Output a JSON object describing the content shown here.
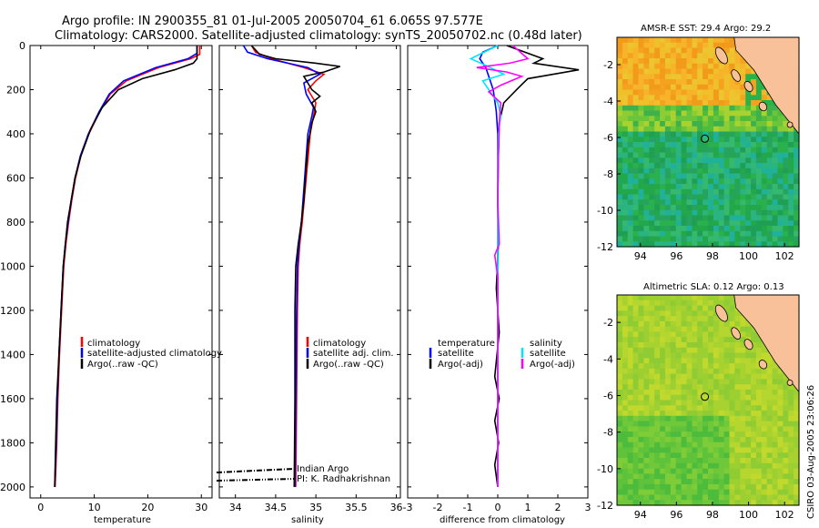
{
  "title": {
    "line1": "Argo profile: IN 2900355_81 01-Jul-2005 20050704_61 6.065S 97.577E",
    "line2": "Climatology: CARS2000. Satellite-adjusted climatology: synTS_20050702.nc (0.48d later)"
  },
  "side_label": "CSIRO 03-Aug-2005 23:06:26",
  "colors": {
    "climatology": "#ff0000",
    "satellite": "#0000ff",
    "argo": "#000000",
    "cyan": "#00e5ff",
    "magenta": "#ff00ff"
  },
  "chart_data": [
    {
      "type": "line",
      "id": "temperature",
      "xlabel": "temperature",
      "ylabel": "",
      "xlim": [
        -2,
        32
      ],
      "ylim": [
        2050,
        0
      ],
      "xticks": [
        "0",
        "10",
        "20",
        "30"
      ],
      "xtick_values": [
        0,
        10,
        20,
        30
      ],
      "yticks": [
        "0",
        "200",
        "400",
        "600",
        "800",
        "1000",
        "1200",
        "1400",
        "1600",
        "1800",
        "2000"
      ],
      "ytick_values": [
        0,
        200,
        400,
        600,
        800,
        1000,
        1200,
        1400,
        1600,
        1800,
        2000
      ],
      "legend": [
        "climatology",
        "satellite-adjusted climatology",
        "Argo(..raw -QC)"
      ],
      "series": [
        {
          "name": "climatology",
          "color": "#ff0000",
          "points": [
            [
              29.7,
              0
            ],
            [
              29.7,
              40
            ],
            [
              28,
              60
            ],
            [
              22,
              100
            ],
            [
              16,
              160
            ],
            [
              13,
              220
            ],
            [
              11,
              300
            ],
            [
              9,
              400
            ],
            [
              7.5,
              500
            ],
            [
              6.5,
              600
            ],
            [
              5.8,
              700
            ],
            [
              5.2,
              800
            ],
            [
              4.7,
              900
            ],
            [
              4.3,
              1000
            ],
            [
              3.9,
              1200
            ],
            [
              3.5,
              1400
            ],
            [
              3.2,
              1600
            ],
            [
              3,
              1800
            ],
            [
              2.7,
              2000
            ]
          ]
        },
        {
          "name": "satellite",
          "color": "#0000ff",
          "points": [
            [
              29.2,
              0
            ],
            [
              29.2,
              35
            ],
            [
              27.5,
              60
            ],
            [
              21.5,
              100
            ],
            [
              15.5,
              160
            ],
            [
              12.8,
              220
            ],
            [
              10.9,
              300
            ],
            [
              8.9,
              400
            ],
            [
              7.4,
              500
            ],
            [
              6.4,
              600
            ],
            [
              5.7,
              700
            ],
            [
              5.1,
              800
            ],
            [
              4.6,
              900
            ],
            [
              4.2,
              1000
            ],
            [
              3.8,
              1200
            ],
            [
              3.4,
              1400
            ],
            [
              3.1,
              1600
            ],
            [
              2.9,
              1800
            ],
            [
              2.6,
              2000
            ]
          ]
        },
        {
          "name": "argo",
          "color": "#000000",
          "points": [
            [
              29.2,
              0
            ],
            [
              29.2,
              60
            ],
            [
              28.5,
              80
            ],
            [
              25,
              110
            ],
            [
              19,
              150
            ],
            [
              14.5,
              200
            ],
            [
              11.5,
              280
            ],
            [
              9.3,
              380
            ],
            [
              7.5,
              500
            ],
            [
              6.4,
              600
            ],
            [
              5.7,
              700
            ],
            [
              5,
              800
            ],
            [
              4.6,
              900
            ],
            [
              4.2,
              1000
            ],
            [
              3.8,
              1200
            ],
            [
              3.4,
              1400
            ],
            [
              3,
              1600
            ],
            [
              2.8,
              1800
            ],
            [
              2.6,
              2000
            ]
          ]
        }
      ]
    },
    {
      "type": "line",
      "id": "salinity",
      "xlabel": "salinity",
      "xlim": [
        33.8,
        36.05
      ],
      "ylim": [
        2050,
        0
      ],
      "xticks": [
        "34",
        "34.5",
        "35",
        "35.5",
        "36"
      ],
      "xtick_values": [
        34,
        34.5,
        35,
        35.5,
        36
      ],
      "legend": [
        "climatology",
        "satellite adj. clim.",
        "Argo(..raw -QC)"
      ],
      "credits": [
        "Indian Argo",
        "PI: K. Radhakrishnan"
      ],
      "series": [
        {
          "name": "climatology",
          "color": "#ff0000",
          "points": [
            [
              34.2,
              0
            ],
            [
              34.25,
              30
            ],
            [
              34.45,
              60
            ],
            [
              34.85,
              100
            ],
            [
              35.1,
              130
            ],
            [
              35.0,
              160
            ],
            [
              34.9,
              200
            ],
            [
              35.0,
              260
            ],
            [
              34.98,
              300
            ],
            [
              34.93,
              400
            ],
            [
              34.88,
              600
            ],
            [
              34.83,
              800
            ],
            [
              34.8,
              900
            ],
            [
              34.78,
              1000
            ],
            [
              34.77,
              1200
            ],
            [
              34.76,
              1600
            ],
            [
              34.75,
              2000
            ]
          ]
        },
        {
          "name": "satellite",
          "color": "#0000ff",
          "points": [
            [
              34.1,
              0
            ],
            [
              34.15,
              30
            ],
            [
              34.4,
              60
            ],
            [
              34.9,
              100
            ],
            [
              35.05,
              130
            ],
            [
              34.85,
              170
            ],
            [
              34.88,
              220
            ],
            [
              34.97,
              280
            ],
            [
              34.95,
              320
            ],
            [
              34.9,
              400
            ],
            [
              34.86,
              600
            ],
            [
              34.82,
              800
            ],
            [
              34.79,
              900
            ],
            [
              34.77,
              1000
            ],
            [
              34.76,
              1200
            ],
            [
              34.75,
              1600
            ],
            [
              34.74,
              2000
            ]
          ]
        },
        {
          "name": "argo",
          "color": "#000000",
          "points": [
            [
              34.2,
              0
            ],
            [
              34.3,
              40
            ],
            [
              34.5,
              60
            ],
            [
              35.0,
              80
            ],
            [
              35.3,
              95
            ],
            [
              35.1,
              120
            ],
            [
              34.85,
              140
            ],
            [
              34.95,
              200
            ],
            [
              35.05,
              230
            ],
            [
              34.95,
              260
            ],
            [
              35.0,
              300
            ],
            [
              34.95,
              350
            ],
            [
              34.9,
              450
            ],
            [
              34.88,
              550
            ],
            [
              34.85,
              700
            ],
            [
              34.82,
              800
            ],
            [
              34.78,
              900
            ],
            [
              34.75,
              1000
            ],
            [
              34.74,
              1200
            ],
            [
              34.74,
              1600
            ],
            [
              34.73,
              2000
            ]
          ]
        }
      ]
    },
    {
      "type": "line",
      "id": "difference",
      "xlabel": "difference from climatology",
      "xlim": [
        -3,
        3
      ],
      "ylim": [
        2050,
        0
      ],
      "xticks": [
        "-3",
        "-2",
        "-1",
        "0",
        "1",
        "2",
        "3"
      ],
      "xtick_values": [
        -3,
        -2,
        -1,
        0,
        1,
        2,
        3
      ],
      "legend_left_title": "temperature",
      "legend_right_title": "salinity",
      "legend_left": [
        "satellite",
        "Argo(-adj)"
      ],
      "legend_right": [
        "satellite",
        "Argo(-adj)"
      ],
      "series": [
        {
          "name": "temperature satellite",
          "color": "#0000ff",
          "points": [
            [
              0,
              0
            ],
            [
              -0.5,
              30
            ],
            [
              -0.6,
              60
            ],
            [
              -0.4,
              100
            ],
            [
              -0.3,
              140
            ],
            [
              -0.15,
              200
            ],
            [
              -0.05,
              300
            ],
            [
              0,
              400
            ],
            [
              0,
              2000
            ]
          ]
        },
        {
          "name": "temperature Argo(-adj)",
          "color": "#000000",
          "points": [
            [
              0.3,
              0
            ],
            [
              1.5,
              60
            ],
            [
              1.2,
              80
            ],
            [
              2.7,
              110
            ],
            [
              1.0,
              150
            ],
            [
              0.7,
              190
            ],
            [
              0.2,
              260
            ],
            [
              0.05,
              350
            ],
            [
              0.02,
              500
            ],
            [
              0.0,
              700
            ],
            [
              0.02,
              900
            ],
            [
              -0.05,
              1100
            ],
            [
              0.05,
              1300
            ],
            [
              -0.1,
              1500
            ],
            [
              0.05,
              1600
            ],
            [
              -0.1,
              1700
            ],
            [
              0.03,
              1800
            ],
            [
              -0.1,
              1900
            ],
            [
              0,
              2000
            ]
          ]
        },
        {
          "name": "salinity satellite",
          "color": "#00e5ff",
          "points": [
            [
              0,
              0
            ],
            [
              -0.9,
              60
            ],
            [
              -0.4,
              90
            ],
            [
              0.2,
              130
            ],
            [
              -0.5,
              160
            ],
            [
              -0.3,
              200
            ],
            [
              0,
              260
            ],
            [
              0.1,
              320
            ],
            [
              0.02,
              400
            ],
            [
              0,
              600
            ],
            [
              0,
              2000
            ]
          ]
        },
        {
          "name": "salinity Argo(-adj)",
          "color": "#ff00ff",
          "points": [
            [
              0.5,
              0
            ],
            [
              1.0,
              60
            ],
            [
              0.4,
              80
            ],
            [
              -0.7,
              100
            ],
            [
              0.3,
              120
            ],
            [
              0.8,
              140
            ],
            [
              0.1,
              180
            ],
            [
              -0.3,
              210
            ],
            [
              0.1,
              260
            ],
            [
              0.05,
              350
            ],
            [
              0.02,
              500
            ],
            [
              0,
              700
            ],
            [
              0.05,
              900
            ],
            [
              -0.1,
              950
            ],
            [
              0,
              1050
            ],
            [
              0,
              2000
            ]
          ]
        }
      ]
    },
    {
      "type": "heatmap",
      "id": "sst-map",
      "title": "AMSR-E SST: 29.4 Argo: 29.2",
      "xticks": [
        "94",
        "96",
        "98",
        "100",
        "102"
      ],
      "xtick_values": [
        94,
        96,
        98,
        100,
        102
      ],
      "yticks": [
        "-2",
        "-4",
        "-6",
        "-8",
        "-10",
        "-12"
      ],
      "ytick_values": [
        -2,
        -4,
        -6,
        -8,
        -10,
        -12
      ],
      "xlim": [
        92.7,
        102.8
      ],
      "ylim": [
        -12,
        -0.5
      ],
      "float_position": [
        97.577,
        -6.065
      ]
    },
    {
      "type": "heatmap",
      "id": "sla-map",
      "title": "Altimetric SLA: 0.12 Argo: 0.13",
      "xticks": [
        "94",
        "96",
        "98",
        "100",
        "102"
      ],
      "xtick_values": [
        94,
        96,
        98,
        100,
        102
      ],
      "yticks": [
        "-2",
        "-4",
        "-6",
        "-8",
        "-10",
        "-12"
      ],
      "ytick_values": [
        -2,
        -4,
        -6,
        -8,
        -10,
        -12
      ],
      "xlim": [
        92.7,
        102.8
      ],
      "ylim": [
        -12,
        -0.5
      ],
      "float_position": [
        97.577,
        -6.065
      ]
    }
  ]
}
